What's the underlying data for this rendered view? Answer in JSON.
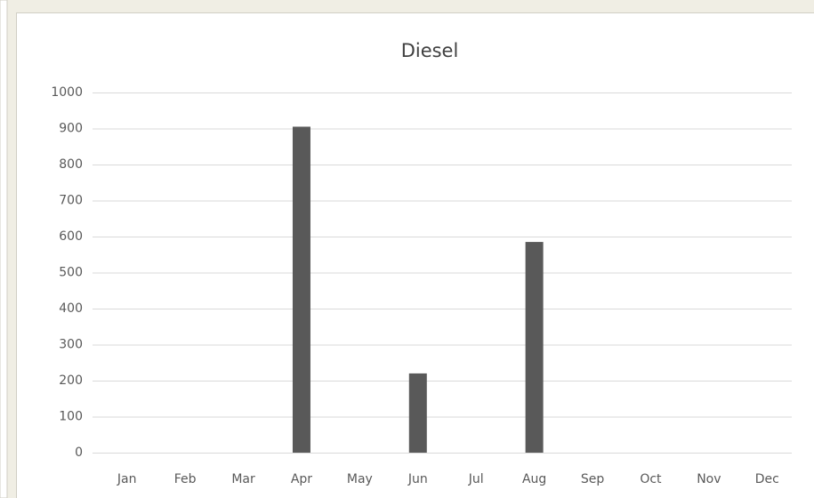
{
  "chart_data": {
    "type": "bar",
    "title": "Diesel",
    "categories": [
      "Jan",
      "Feb",
      "Mar",
      "Apr",
      "May",
      "Jun",
      "Jul",
      "Aug",
      "Sep",
      "Oct",
      "Nov",
      "Dec"
    ],
    "values": [
      0,
      0,
      0,
      905,
      0,
      220,
      0,
      585,
      0,
      0,
      0,
      0
    ],
    "color": "#595959",
    "ylim": [
      0,
      1000
    ],
    "yticks": [
      0,
      100,
      200,
      300,
      400,
      500,
      600,
      700,
      800,
      900,
      1000
    ],
    "grid": true
  }
}
